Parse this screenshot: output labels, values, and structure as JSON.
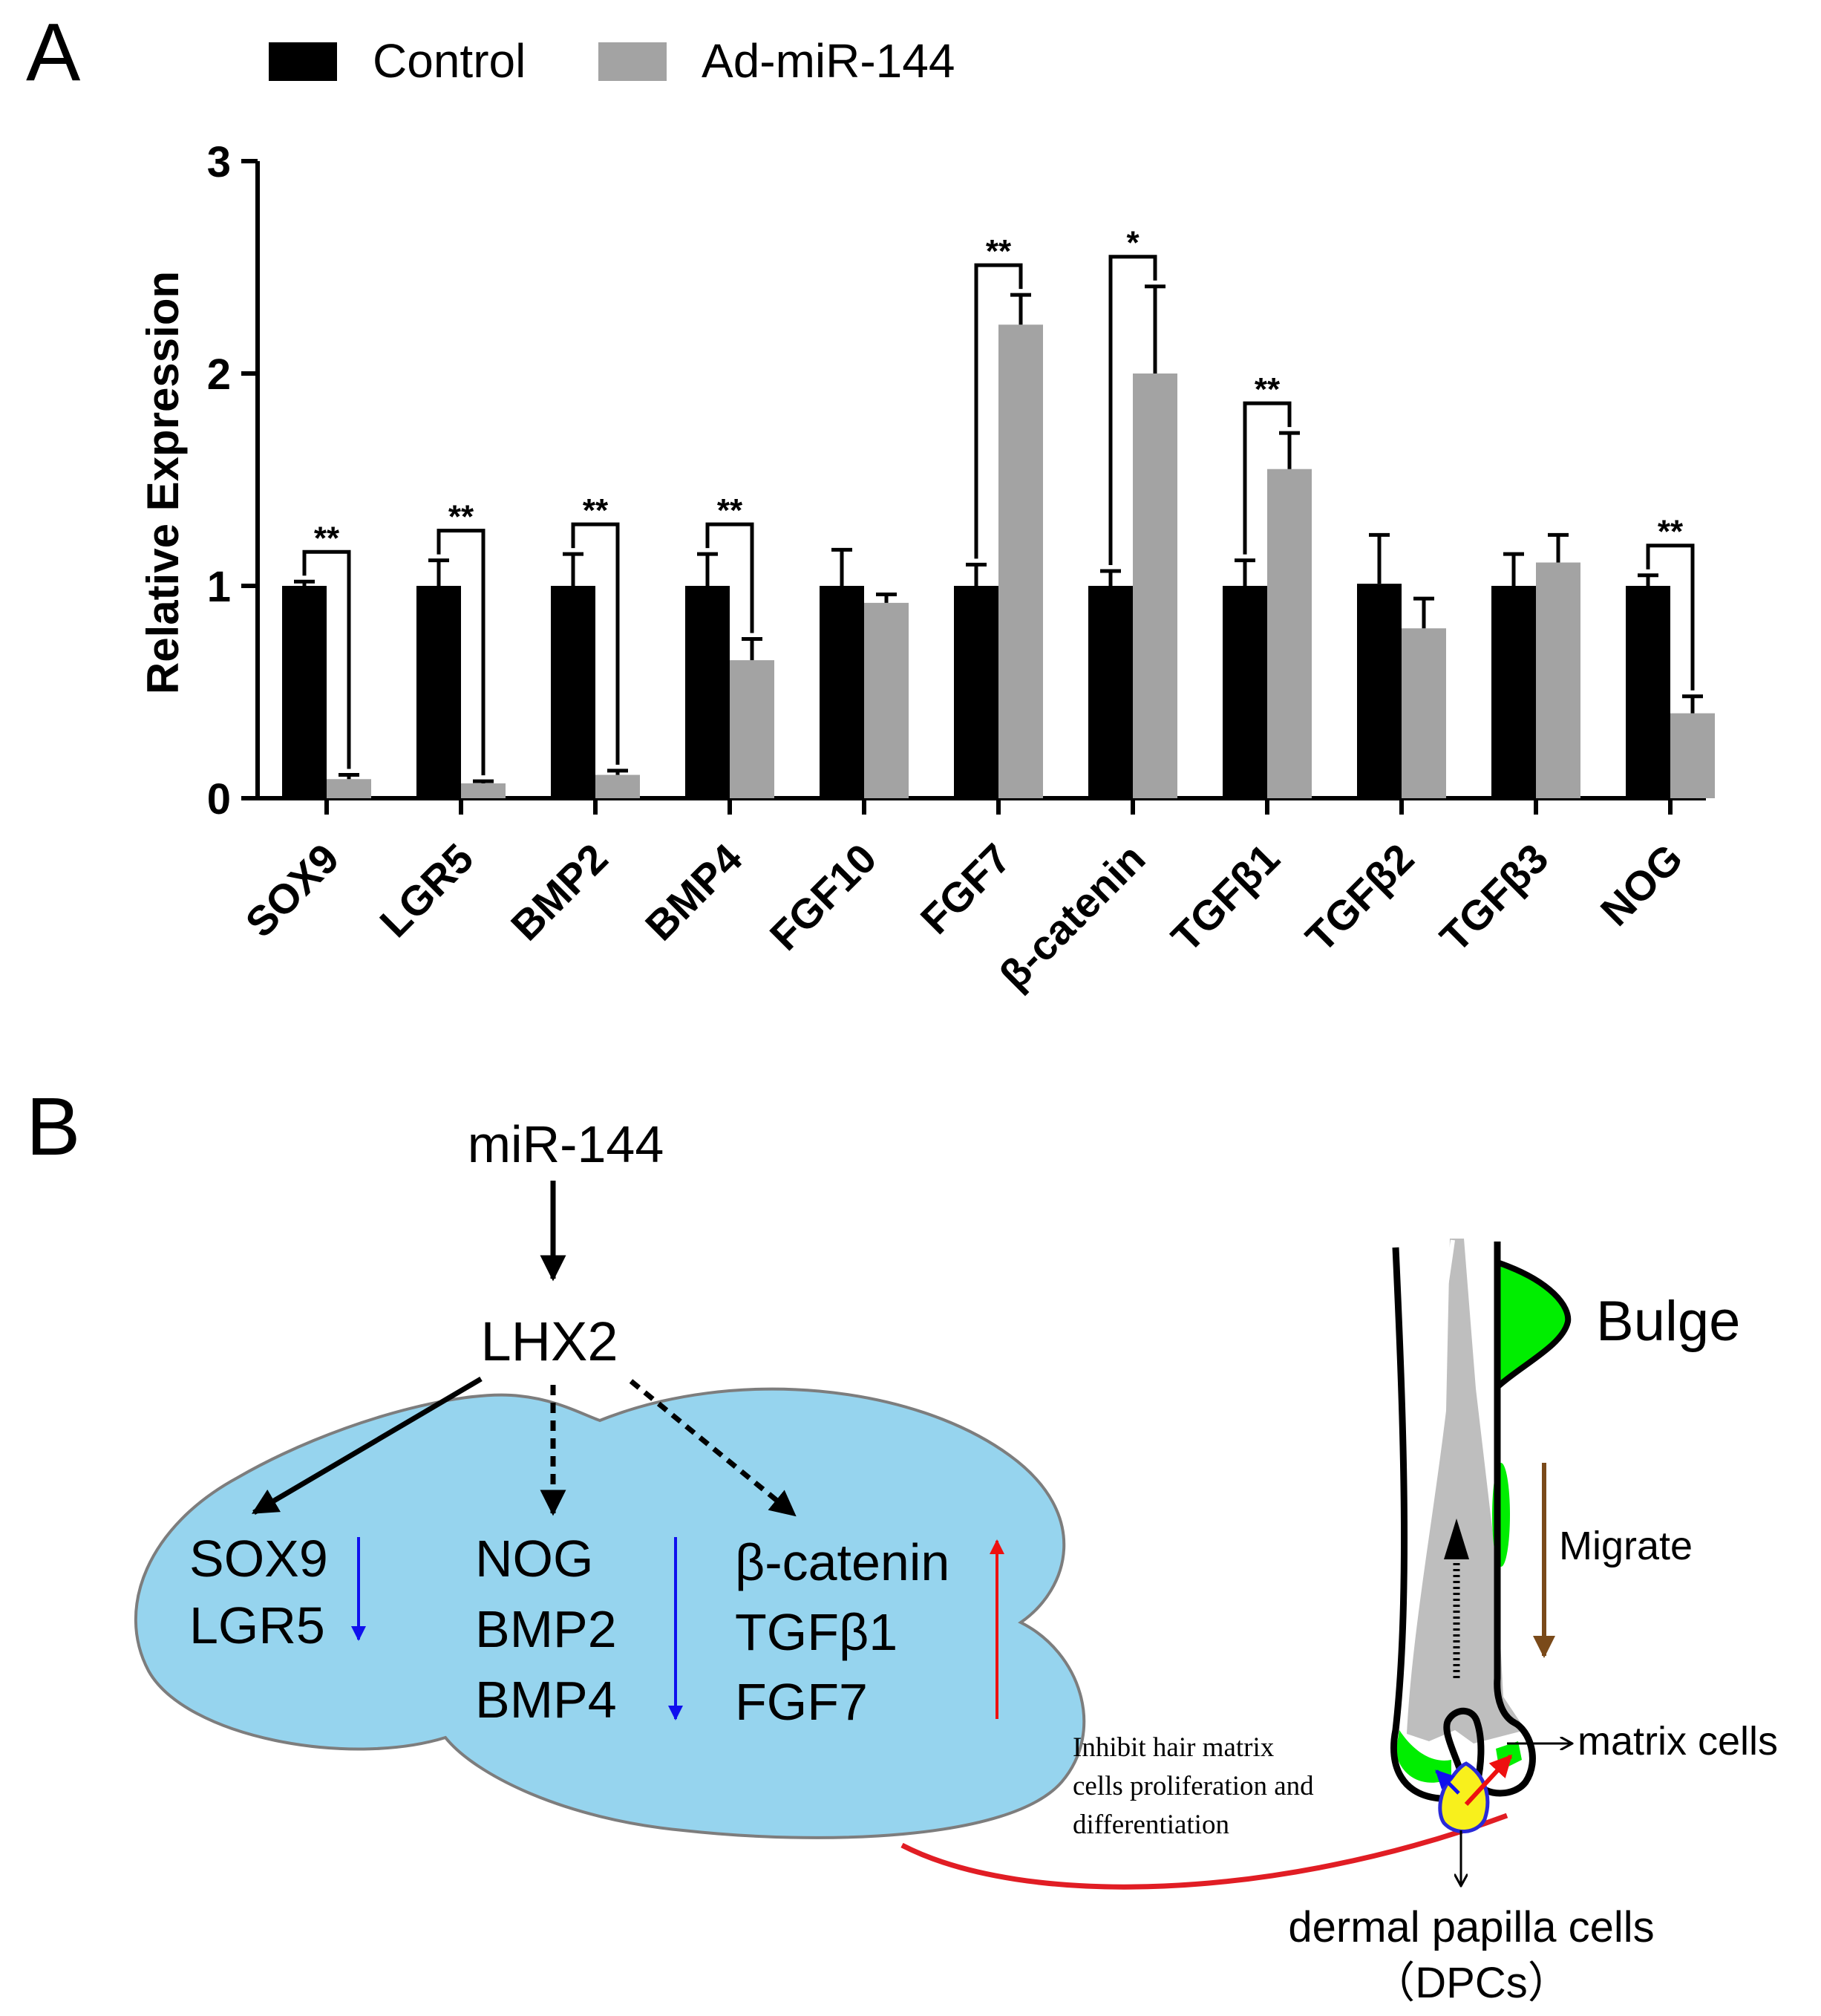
{
  "panel_a": {
    "label": "A",
    "legend": [
      {
        "name": "Control",
        "color": "#000000"
      },
      {
        "name": "Ad-miR-144",
        "color": "#a3a3a3"
      }
    ]
  },
  "chart_data": {
    "type": "bar",
    "title": "",
    "xlabel": "",
    "ylabel": "Relative Expression",
    "ylim": [
      0,
      3
    ],
    "yticks": [
      0,
      1,
      2,
      3
    ],
    "grid": false,
    "legend_position": "top",
    "categories": [
      "SOX9",
      "LGR5",
      "BMP2",
      "BMP4",
      "FGF10",
      "FGF7",
      "β-catenin",
      "TGFβ1",
      "TGFβ2",
      "TGFβ3",
      "NOG"
    ],
    "series": [
      {
        "name": "Control",
        "color": "#000000",
        "values": [
          1.0,
          1.0,
          1.0,
          1.0,
          1.0,
          1.0,
          1.0,
          1.0,
          1.01,
          1.0,
          1.0
        ],
        "error": [
          0.02,
          0.12,
          0.15,
          0.15,
          0.17,
          0.1,
          0.07,
          0.12,
          0.23,
          0.15,
          0.05
        ]
      },
      {
        "name": "Ad-miR-144",
        "color": "#a3a3a3",
        "values": [
          0.09,
          0.07,
          0.11,
          0.65,
          0.92,
          2.23,
          2.0,
          1.55,
          0.8,
          1.11,
          0.4
        ],
        "error": [
          0.02,
          0.01,
          0.02,
          0.1,
          0.04,
          0.14,
          0.41,
          0.17,
          0.14,
          0.13,
          0.08
        ]
      }
    ],
    "significance": [
      "**",
      "**",
      "**",
      "**",
      "",
      "**",
      "*",
      "**",
      "",
      "",
      "**"
    ]
  },
  "panel_b": {
    "label": "B",
    "mirna": "miR-144",
    "target": "LHX2",
    "group1": {
      "genes": [
        "SOX9",
        "LGR5"
      ],
      "direction": "down"
    },
    "group2": {
      "genes": [
        "NOG",
        "BMP2",
        "BMP4"
      ],
      "direction": "down"
    },
    "group3": {
      "genes": [
        "β-catenin",
        "TGFβ1",
        "FGF7"
      ],
      "direction": "up"
    },
    "inhibit_text": [
      "Inhibit hair matrix",
      "cells proliferation and",
      "differentiation"
    ],
    "bulge_label": "Bulge",
    "migrate_label": "Migrate",
    "matrix_label": "matrix cells",
    "dpc_label": [
      "dermal papilla cells",
      "（DPCs）"
    ],
    "colors": {
      "cloud": "#96d4ee",
      "down_arrow": "#1010ee",
      "up_arrow": "#ee1010",
      "green": "#00ee00",
      "hair_shaft": "#bebebe",
      "migrate_arrow": "#7a4a1a",
      "papilla": "#f8f01c"
    }
  }
}
